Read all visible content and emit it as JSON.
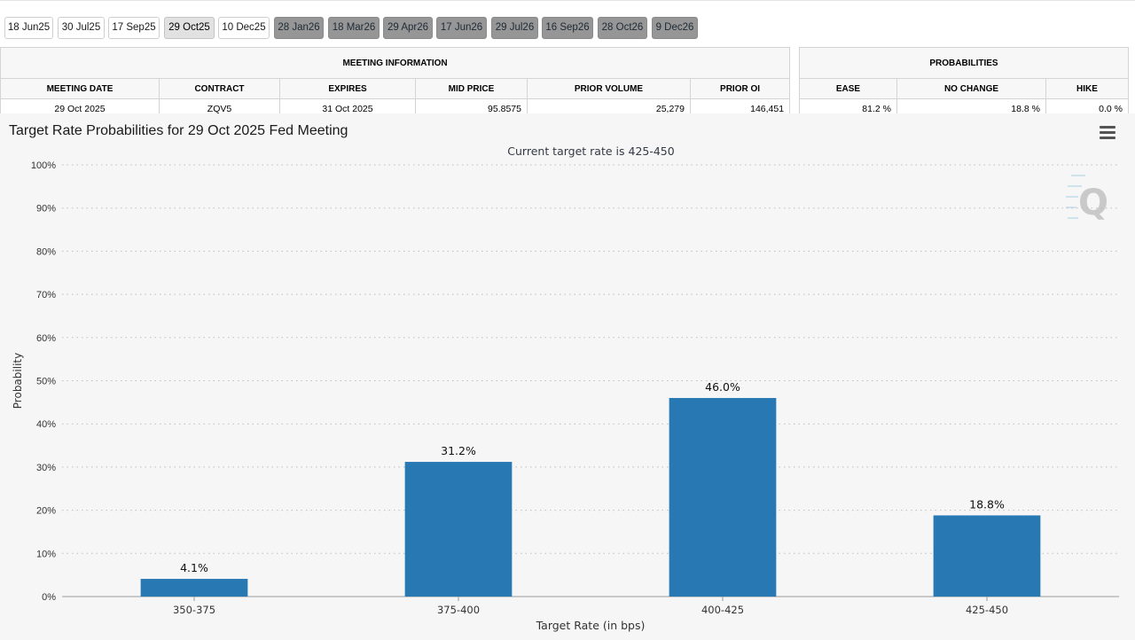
{
  "meeting_tabs": [
    {
      "label": "18 Jun25",
      "state": "normal"
    },
    {
      "label": "30 Jul25",
      "state": "normal"
    },
    {
      "label": "17 Sep25",
      "state": "normal"
    },
    {
      "label": "29 Oct25",
      "state": "active"
    },
    {
      "label": "10 Dec25",
      "state": "normal"
    },
    {
      "label": "28 Jan26",
      "state": "dark"
    },
    {
      "label": "18 Mar26",
      "state": "dark"
    },
    {
      "label": "29 Apr26",
      "state": "dark"
    },
    {
      "label": "17 Jun26",
      "state": "dark"
    },
    {
      "label": "29 Jul26",
      "state": "dark"
    },
    {
      "label": "16 Sep26",
      "state": "dark"
    },
    {
      "label": "28 Oct26",
      "state": "dark"
    },
    {
      "label": "9 Dec26",
      "state": "dark"
    }
  ],
  "meeting_info": {
    "header": "MEETING INFORMATION",
    "columns": [
      "MEETING DATE",
      "CONTRACT",
      "EXPIRES",
      "MID PRICE",
      "PRIOR VOLUME",
      "PRIOR OI"
    ],
    "row": [
      "29 Oct 2025",
      "ZQV5",
      "31 Oct 2025",
      "95.8575",
      "25,279",
      "146,451"
    ]
  },
  "probabilities": {
    "header": "PROBABILITIES",
    "columns": [
      "EASE",
      "NO CHANGE",
      "HIKE"
    ],
    "row": [
      "81.2 %",
      "18.8 %",
      "0.0 %"
    ]
  },
  "chart_data": {
    "type": "bar",
    "title": "Target Rate Probabilities for 29 Oct 2025 Fed Meeting",
    "subtitle": "Current target rate is 425-450",
    "xlabel": "Target Rate (in bps)",
    "ylabel": "Probability",
    "categories": [
      "350-375",
      "375-400",
      "400-425",
      "425-450"
    ],
    "values": [
      4.1,
      31.2,
      46.0,
      18.8
    ],
    "data_labels": [
      "4.1%",
      "31.2%",
      "46.0%",
      "18.8%"
    ],
    "ylim": [
      0,
      100
    ],
    "yticks": [
      0,
      10,
      20,
      30,
      40,
      50,
      60,
      70,
      80,
      90,
      100
    ],
    "ytick_labels": [
      "0%",
      "10%",
      "20%",
      "30%",
      "40%",
      "50%",
      "60%",
      "70%",
      "80%",
      "90%",
      "100%"
    ],
    "bar_color": "#2878b4",
    "grid": "dotted-horizontal"
  },
  "watermark_letter": "Q"
}
